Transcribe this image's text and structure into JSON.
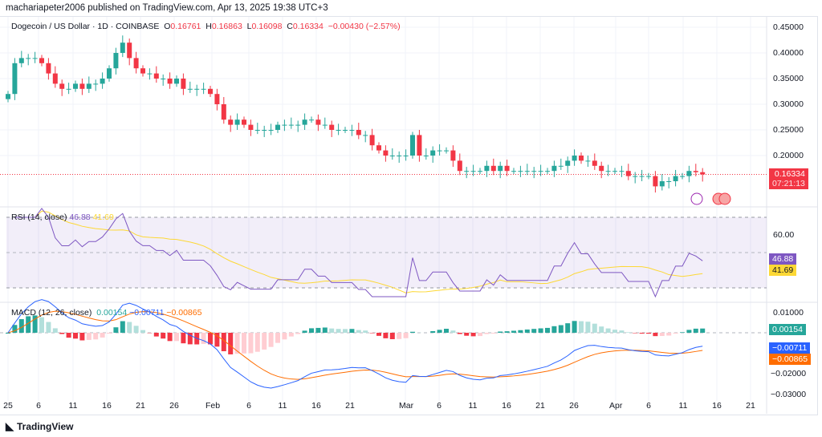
{
  "publisher": "machariapeter2006 published on TradingView.com, Apr 13, 2025 19:38 UTC+3",
  "symbol": {
    "title": "Dogecoin / US Dollar · 1D · COINBASE",
    "o_label": "O",
    "o": "0.16761",
    "h_label": "H",
    "h": "0.16863",
    "l_label": "L",
    "l": "0.16098",
    "c_label": "C",
    "c": "0.16334",
    "change": "−0.00430 (−2.57%)"
  },
  "price_axis": [
    "0.45000",
    "0.40000",
    "0.35000",
    "0.30000",
    "0.25000",
    "0.20000"
  ],
  "last_price": {
    "value": "0.16334",
    "countdown": "07:21:13"
  },
  "rsi": {
    "title": "RSI (14, close)",
    "value": "46.88",
    "ma": "41.69",
    "axis": [
      "60.00"
    ]
  },
  "macd": {
    "title": "MACD (12, 26, close)",
    "hist": "0.00154",
    "macd": "−0.00711",
    "signal": "−0.00865",
    "axis": [
      "0.01000",
      "−0.02000",
      "−0.03000"
    ]
  },
  "x_axis": [
    "25",
    "6",
    "11",
    "16",
    "21",
    "26",
    "Feb",
    "6",
    "11",
    "16",
    "21",
    "Mar",
    "6",
    "11",
    "16",
    "21",
    "26",
    "Apr",
    "6",
    "11",
    "16",
    "21"
  ],
  "colors": {
    "up": "#26a69a",
    "down": "#f23645",
    "rsi": "#7e57c2",
    "rsi_ma": "#fdd835",
    "macd": "#2962ff",
    "signal": "#ff6d00"
  },
  "brand": "TradingView",
  "chart_data": {
    "type": "candlestick",
    "start": "2025-01-01",
    "closes": [
      0.32,
      0.38,
      0.39,
      0.39,
      0.39,
      0.38,
      0.36,
      0.34,
      0.33,
      0.33,
      0.34,
      0.33,
      0.34,
      0.34,
      0.35,
      0.37,
      0.4,
      0.42,
      0.39,
      0.37,
      0.36,
      0.36,
      0.35,
      0.35,
      0.34,
      0.35,
      0.33,
      0.33,
      0.33,
      0.33,
      0.32,
      0.3,
      0.27,
      0.26,
      0.27,
      0.26,
      0.25,
      0.25,
      0.25,
      0.25,
      0.26,
      0.26,
      0.26,
      0.26,
      0.27,
      0.27,
      0.26,
      0.26,
      0.25,
      0.25,
      0.25,
      0.25,
      0.24,
      0.24,
      0.22,
      0.21,
      0.2,
      0.2,
      0.2,
      0.2,
      0.24,
      0.2,
      0.2,
      0.21,
      0.21,
      0.21,
      0.19,
      0.17,
      0.17,
      0.17,
      0.17,
      0.18,
      0.17,
      0.18,
      0.17,
      0.17,
      0.17,
      0.17,
      0.17,
      0.17,
      0.17,
      0.18,
      0.18,
      0.19,
      0.2,
      0.19,
      0.19,
      0.18,
      0.17,
      0.17,
      0.17,
      0.17,
      0.16,
      0.16,
      0.16,
      0.16,
      0.14,
      0.15,
      0.15,
      0.16,
      0.16,
      0.17,
      0.16761,
      0.16334
    ]
  }
}
